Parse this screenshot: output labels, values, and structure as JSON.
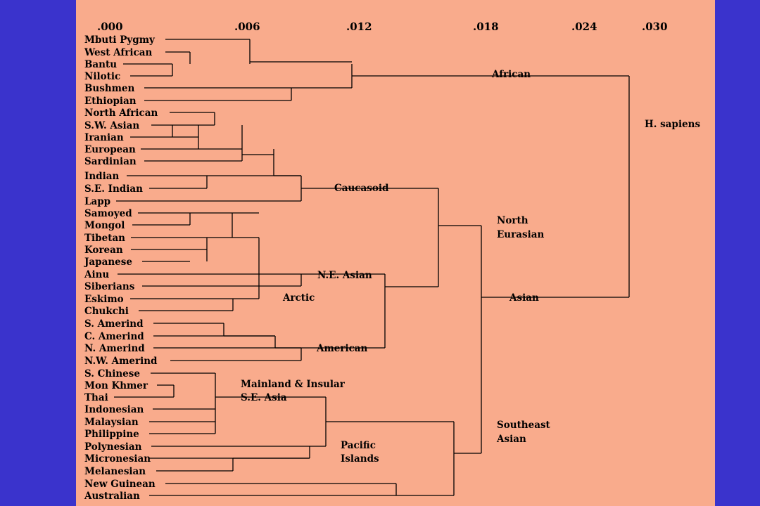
{
  "colors": {
    "background": "#3a33cc",
    "panel": "#f9ab8c",
    "ink": "#000000"
  },
  "axis_ticks": [
    ".000",
    ".006",
    ".012",
    ".018",
    ".024",
    ".030"
  ],
  "populations": [
    "Mbuti Pygmy",
    "West African",
    "Bantu",
    "Nilotic",
    "Bushmen",
    "Ethiopian",
    "North African",
    "S.W. Asian",
    "Iranian",
    "European",
    "Sardinian",
    "Indian",
    "S.E. Indian",
    "Lapp",
    "Samoyed",
    "Mongol",
    "Tibetan",
    "Korean",
    "Japanese",
    "Ainu",
    "Siberians",
    "Eskimo",
    "Chukchi",
    "S. Amerind",
    "C. Amerind",
    "N. Amerind",
    "N.W. Amerind",
    "S. Chinese",
    "Mon Khmer",
    "Thai",
    "Indonesian",
    "Malaysian",
    "Philippine",
    "Polynesian",
    "Micronesian",
    "Melanesian",
    "New Guinean",
    "Australian"
  ],
  "group_labels": {
    "african": "African",
    "h_sapiens": "H. sapiens",
    "caucasoid": "Caucasoid",
    "north_eurasian_1": "North",
    "north_eurasian_2": "Eurasian",
    "ne_asian": "N.E. Asian",
    "arctic": "Arctic",
    "asian": "Asian",
    "american": "American",
    "mainland_1": "Mainland & Insular",
    "mainland_2": "S.E. Asia",
    "southeast_1": "Southeast",
    "southeast_2": "Asian",
    "pacific_1": "Pacific",
    "pacific_2": "Islands"
  }
}
